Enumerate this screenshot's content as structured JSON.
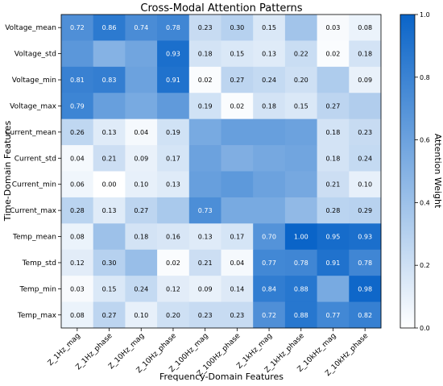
{
  "chart_data": {
    "type": "heatmap",
    "title": "Cross-Modal Attention Patterns",
    "xlabel": "Frequency-Domain Features",
    "ylabel": "Time-Domain Features",
    "colorbar_label": "Attention Weight",
    "colorbar_ticks": [
      "0.0",
      "0.2",
      "0.4",
      "0.6",
      "0.8",
      "1.0"
    ],
    "colorbar_range": [
      0,
      1
    ],
    "colormap": [
      "#ffffff",
      "#0a64c8"
    ],
    "columns": [
      "Z_1Hz_mag",
      "Z_1Hz_phase",
      "Z_10Hz_mag",
      "Z_10Hz_phase",
      "Z_100Hz_mag",
      "Z_100Hz_phase",
      "Z_1kHz_mag",
      "Z_1kHz_phase",
      "Z_10kHz_mag",
      "Z_10kHz_phase"
    ],
    "rows": [
      "Voltage_mean",
      "Voltage_std",
      "Voltage_min",
      "Voltage_max",
      "Current_mean",
      "Current_std",
      "Current_min",
      "Current_max",
      "Temp_mean",
      "Temp_std",
      "Temp_min",
      "Temp_max"
    ],
    "values": [
      [
        0.72,
        0.86,
        0.74,
        0.78,
        0.23,
        0.3,
        0.15,
        0.38,
        0.03,
        0.08
      ],
      [
        0.67,
        0.5,
        0.58,
        0.93,
        0.18,
        0.15,
        0.13,
        0.22,
        0.02,
        0.18
      ],
      [
        0.81,
        0.83,
        0.6,
        0.91,
        0.02,
        0.27,
        0.24,
        0.2,
        0.33,
        0.09
      ],
      [
        0.79,
        0.62,
        0.55,
        0.65,
        0.19,
        0.02,
        0.18,
        0.15,
        0.27,
        0.32
      ],
      [
        0.26,
        0.13,
        0.04,
        0.19,
        0.55,
        0.62,
        0.62,
        0.6,
        0.18,
        0.23
      ],
      [
        0.04,
        0.21,
        0.09,
        0.17,
        0.6,
        0.52,
        0.56,
        0.58,
        0.18,
        0.24
      ],
      [
        0.06,
        0.0,
        0.1,
        0.13,
        0.62,
        0.66,
        0.6,
        0.56,
        0.21,
        0.1
      ],
      [
        0.28,
        0.13,
        0.27,
        0.35,
        0.73,
        0.55,
        0.55,
        0.45,
        0.28,
        0.29
      ],
      [
        0.08,
        0.4,
        0.18,
        0.16,
        0.13,
        0.17,
        0.7,
        1.0,
        0.95,
        0.93
      ],
      [
        0.12,
        0.3,
        0.42,
        0.02,
        0.21,
        0.04,
        0.77,
        0.78,
        0.91,
        0.78
      ],
      [
        0.03,
        0.15,
        0.24,
        0.12,
        0.09,
        0.14,
        0.84,
        0.88,
        0.55,
        0.98
      ],
      [
        0.08,
        0.27,
        0.1,
        0.2,
        0.23,
        0.23,
        0.72,
        0.88,
        0.77,
        0.82
      ]
    ],
    "labels": [
      [
        "0.72",
        "0.86",
        "0.74",
        "0.78",
        "0.23",
        "0.30",
        "0.15",
        "",
        "0.03",
        "0.08"
      ],
      [
        "",
        "",
        "",
        "0.93",
        "0.18",
        "0.15",
        "0.13",
        "0.22",
        "0.02",
        "0.18"
      ],
      [
        "0.81",
        "0.83",
        "",
        "0.91",
        "0.02",
        "0.27",
        "0.24",
        "0.20",
        "",
        "0.09"
      ],
      [
        "0.79",
        "",
        "",
        "",
        "0.19",
        "0.02",
        "0.18",
        "0.15",
        "0.27",
        ""
      ],
      [
        "0.26",
        "0.13",
        "0.04",
        "0.19",
        "",
        "",
        "",
        "",
        "0.18",
        "0.23"
      ],
      [
        "0.04",
        "0.21",
        "0.09",
        "0.17",
        "",
        "",
        "",
        "",
        "0.18",
        "0.24"
      ],
      [
        "0.06",
        "0.00",
        "0.10",
        "0.13",
        "",
        "",
        "",
        "",
        "0.21",
        "0.10"
      ],
      [
        "0.28",
        "0.13",
        "0.27",
        "",
        "0.73",
        "",
        "",
        "",
        "0.28",
        "0.29"
      ],
      [
        "0.08",
        "",
        "0.18",
        "0.16",
        "0.13",
        "0.17",
        "0.70",
        "1.00",
        "0.95",
        "0.93"
      ],
      [
        "0.12",
        "0.30",
        "",
        "0.02",
        "0.21",
        "0.04",
        "0.77",
        "0.78",
        "0.91",
        "0.78"
      ],
      [
        "0.03",
        "0.15",
        "0.24",
        "0.12",
        "0.09",
        "0.14",
        "0.84",
        "0.88",
        "",
        "0.98"
      ],
      [
        "0.08",
        "0.27",
        "0.10",
        "0.20",
        "0.23",
        "0.23",
        "0.72",
        "0.88",
        "0.77",
        "0.82"
      ]
    ]
  }
}
